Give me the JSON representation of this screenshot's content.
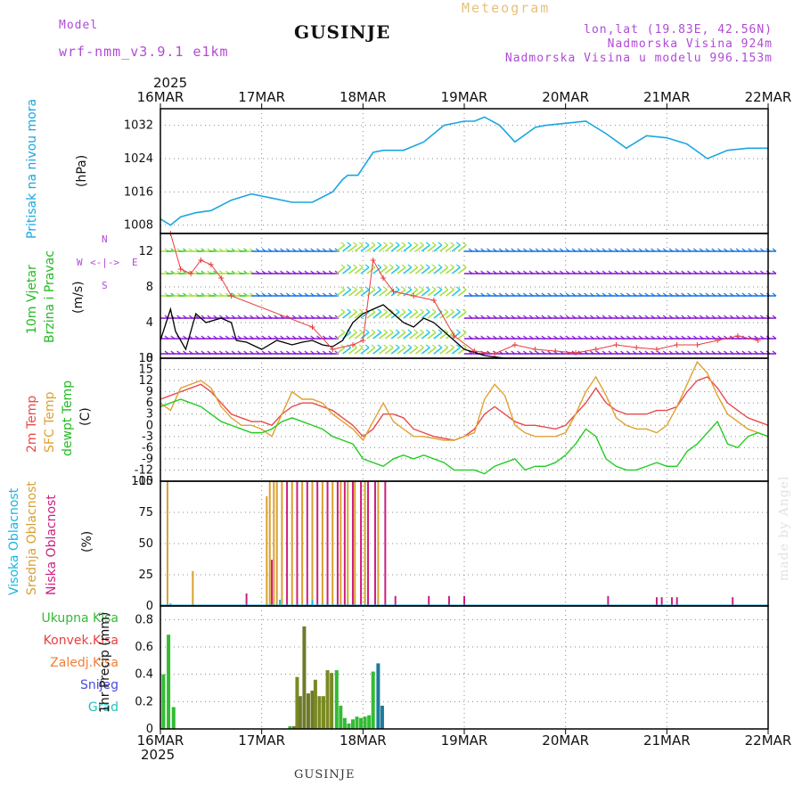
{
  "header": {
    "model_label": "Model",
    "model_name": "wrf-nmm_v3.9.1 e1km",
    "station": "GUSINJE",
    "meteogram": "Meteogram",
    "lonlat": "lon,lat (19.83E, 42.56N)",
    "elev": "Nadmorska Visina 924m",
    "elev_model": "Nadmorska Visina u modelu 996.153m",
    "year_top": "2025"
  },
  "footer": {
    "year": "2025",
    "station": "GUSINJE",
    "credit": "made by Angel"
  },
  "x_ticks": [
    "16MAR",
    "17MAR",
    "18MAR",
    "19MAR",
    "20MAR",
    "21MAR",
    "22MAR"
  ],
  "colors": {
    "pressure": "#1aa6e0",
    "wind_black": "#000000",
    "wind_gust": "#e83c3c",
    "temp2m": "#e84a4a",
    "sfc": "#e0a030",
    "dew": "#22cc22",
    "cloud_high": "#19b5e0",
    "cloud_mid": "#d9a030",
    "cloud_low": "#cc1f80",
    "rain_total": "#33bb33",
    "rain_conv": "#e84040",
    "rain_frz": "#ef7f3a",
    "snow": "#4a4ae0",
    "grad": "#22c0c0",
    "barb_violet": "#8a1fd8",
    "barb_blue": "#1f7ae8",
    "barb_lime": "#a8e040",
    "barb_cyan": "#22c9e0"
  },
  "panels": {
    "pressure": {
      "ylabel1": "Pritisak na nivou mora",
      "ylabel2": "(hPa)",
      "ticks": [
        "1008",
        "1016",
        "1024",
        "1032"
      ]
    },
    "wind": {
      "ylabel1": "10m Vjetar",
      "ylabel2": "Brzina i Pravac",
      "ylabel3": "(m/s)",
      "ticks": [
        "0",
        "4",
        "8",
        "12"
      ],
      "compass_n": "N",
      "compass_w": "W",
      "compass_e": "E",
      "compass_s": "S"
    },
    "temp": {
      "ylabel1": "2m Temp",
      "ylabel2": "SFC Temp",
      "ylabel3": "dewpt Temp",
      "ylabel4": "(C)",
      "ticks": [
        "-15",
        "-12",
        "-9",
        "-6",
        "-3",
        "0",
        "3",
        "6",
        "9",
        "12",
        "15",
        "18"
      ]
    },
    "cloud": {
      "ylabel1": "Visoka Oblacnost",
      "ylabel2": "Srednja Oblacnost",
      "ylabel3": "Niska Oblacnost",
      "ylabel4": "(%)",
      "ticks": [
        "0",
        "25",
        "50",
        "75",
        "100"
      ]
    },
    "precip": {
      "ylabel": "1hr Precip (mm)",
      "ticks": [
        "0",
        "0.2",
        "0.4",
        "0.6",
        "0.8"
      ],
      "legend": [
        "Ukupna Kisa",
        "Konvek.Kisa",
        "Zaledj.Kisa",
        "Snijeg",
        "Grad"
      ]
    }
  },
  "chart_data": [
    {
      "type": "line",
      "name": "pressure",
      "ylim": [
        1006,
        1036
      ],
      "x": [
        0,
        0.1,
        0.2,
        0.35,
        0.5,
        0.7,
        0.9,
        1.0,
        1.1,
        1.3,
        1.5,
        1.7,
        1.8,
        1.85,
        1.95,
        2.1,
        2.2,
        2.4,
        2.6,
        2.8,
        3.0,
        3.1,
        3.2,
        3.35,
        3.5,
        3.7,
        3.8,
        4.0,
        4.2,
        4.4,
        4.6,
        4.8,
        5.0,
        5.2,
        5.4,
        5.6,
        5.8,
        6.0
      ],
      "y": [
        1009.5,
        1008,
        1010,
        1011,
        1011.5,
        1014,
        1015.5,
        1015,
        1014.5,
        1013.5,
        1013.5,
        1016,
        1019,
        1020,
        1020,
        1025.5,
        1026,
        1026,
        1028,
        1032,
        1033,
        1033,
        1034,
        1032,
        1028,
        1031.5,
        1032,
        1032.5,
        1033,
        1030,
        1026.5,
        1029.5,
        1029,
        1027.5,
        1024,
        1026,
        1026.5,
        1026.5
      ]
    },
    {
      "type": "line",
      "name": "wind_speed",
      "ylim": [
        0,
        14
      ],
      "x": [
        0,
        0.1,
        0.15,
        0.25,
        0.35,
        0.45,
        0.6,
        0.7,
        0.75,
        0.85,
        1.0,
        1.15,
        1.3,
        1.4,
        1.5,
        1.6,
        1.7,
        1.8,
        1.9,
        2.0,
        2.1,
        2.2,
        2.3,
        2.4,
        2.5,
        2.6,
        2.7,
        2.8,
        2.9,
        3.0,
        3.2,
        3.4,
        3.6
      ],
      "y": [
        2,
        5.5,
        3,
        1,
        5,
        4,
        4.5,
        4,
        2,
        1.8,
        1,
        2,
        1.5,
        1.8,
        2,
        1.5,
        1.3,
        2,
        4,
        5,
        5.5,
        6,
        5,
        4,
        3.5,
        4.5,
        4,
        3,
        2,
        1,
        0.3,
        0,
        0
      ]
    },
    {
      "type": "scatter",
      "name": "wind_gust",
      "ylim": [
        0,
        14
      ],
      "x": [
        0.1,
        0.2,
        0.3,
        0.4,
        0.5,
        0.6,
        0.7,
        1.5,
        1.7,
        1.9,
        2.0,
        2.1,
        2.2,
        2.3,
        2.5,
        2.7,
        2.9,
        3.1,
        3.3,
        3.5,
        3.7,
        3.9,
        4.1,
        4.3,
        4.5,
        4.7,
        4.9,
        5.1,
        5.3,
        5.5,
        5.7,
        5.9
      ],
      "y": [
        14,
        10,
        9.5,
        11,
        10.5,
        9,
        7,
        3.5,
        1,
        1.5,
        2,
        11,
        9,
        7.5,
        7,
        6.5,
        2.5,
        0.8,
        0.5,
        1.5,
        1,
        0.8,
        0.6,
        1,
        1.5,
        1.2,
        1,
        1.5,
        1.5,
        2,
        2.5,
        2
      ]
    },
    {
      "type": "line",
      "name": "temps",
      "ylim": [
        -15,
        18
      ],
      "x": [
        0,
        0.1,
        0.2,
        0.3,
        0.4,
        0.5,
        0.6,
        0.7,
        0.8,
        0.9,
        1.0,
        1.1,
        1.2,
        1.3,
        1.4,
        1.5,
        1.6,
        1.7,
        1.8,
        1.9,
        2.0,
        2.1,
        2.2,
        2.3,
        2.4,
        2.5,
        2.6,
        2.7,
        2.8,
        2.9,
        3.0,
        3.1,
        3.2,
        3.3,
        3.4,
        3.5,
        3.6,
        3.7,
        3.8,
        3.9,
        4.0,
        4.1,
        4.2,
        4.3,
        4.4,
        4.5,
        4.6,
        4.7,
        4.8,
        4.9,
        5.0,
        5.1,
        5.2,
        5.3,
        5.4,
        5.5,
        5.6,
        5.7,
        5.8,
        5.9,
        6.0
      ],
      "series": [
        {
          "name": "2m Temp",
          "values": [
            7,
            8,
            9,
            10,
            11,
            9,
            6,
            3,
            2,
            1,
            1,
            0,
            3,
            5,
            6,
            6,
            5,
            4,
            2,
            0,
            -3,
            -1,
            3,
            3,
            2,
            -1,
            -2,
            -3,
            -3.5,
            -4,
            -3,
            -1,
            3,
            5,
            3,
            1,
            0,
            0,
            -0.5,
            -1,
            0,
            3,
            6,
            10,
            6,
            4,
            3,
            3,
            3,
            4,
            4,
            5,
            9,
            12,
            13,
            10,
            6,
            4,
            2,
            1,
            0
          ]
        },
        {
          "name": "SFC Temp",
          "values": [
            6,
            4,
            10,
            11,
            12,
            10,
            5,
            2,
            0,
            0,
            -1,
            -3,
            3,
            9,
            7,
            7,
            6,
            3,
            1,
            -1,
            -4,
            1,
            6,
            1,
            -1,
            -3,
            -3,
            -3.5,
            -4,
            -4,
            -3,
            -2,
            7,
            11,
            8,
            0,
            -2,
            -3,
            -3,
            -3,
            -2,
            3,
            9,
            13,
            8,
            2,
            0,
            -1,
            -1,
            -2,
            0,
            5,
            11,
            17,
            14,
            8,
            3,
            1,
            -1,
            -2,
            -3
          ]
        },
        {
          "name": "dewpt Temp",
          "values": [
            5,
            6,
            7,
            6,
            5,
            3,
            1,
            0,
            -1,
            -2,
            -2,
            -1,
            1,
            2,
            1,
            0,
            -1,
            -3,
            -4,
            -5,
            -9,
            -10,
            -11,
            -9,
            -8,
            -9,
            -8,
            -9,
            -10,
            -12,
            -12,
            -12,
            -13,
            -11,
            -10,
            -9,
            -12,
            -11,
            -11,
            -10,
            -8,
            -5,
            -1,
            -3,
            -9,
            -11,
            -12,
            -12,
            -11,
            -10,
            -11,
            -11,
            -7,
            -5,
            -2,
            1,
            -5,
            -6,
            -3,
            -2,
            -3
          ]
        }
      ]
    },
    {
      "type": "bar",
      "name": "cloud",
      "ylim": [
        0,
        100
      ],
      "mid": [
        [
          0.07,
          100
        ],
        [
          0.32,
          28
        ],
        [
          1.05,
          88
        ],
        [
          1.08,
          100
        ],
        [
          1.12,
          100
        ],
        [
          1.15,
          100
        ],
        [
          1.2,
          100
        ],
        [
          1.3,
          100
        ],
        [
          1.4,
          100
        ],
        [
          1.5,
          100
        ],
        [
          1.6,
          100
        ],
        [
          1.7,
          100
        ],
        [
          1.78,
          100
        ],
        [
          1.85,
          100
        ],
        [
          1.92,
          100
        ],
        [
          2.02,
          100
        ],
        [
          2.15,
          100
        ]
      ],
      "low": [
        [
          0.85,
          10
        ],
        [
          1.1,
          37
        ],
        [
          1.25,
          100
        ],
        [
          1.35,
          100
        ],
        [
          1.45,
          100
        ],
        [
          1.55,
          100
        ],
        [
          1.65,
          100
        ],
        [
          1.75,
          100
        ],
        [
          1.82,
          100
        ],
        [
          1.9,
          100
        ],
        [
          1.98,
          100
        ],
        [
          2.05,
          100
        ],
        [
          2.12,
          100
        ],
        [
          2.22,
          100
        ],
        [
          2.32,
          8
        ],
        [
          2.65,
          8
        ],
        [
          2.85,
          8
        ],
        [
          3.0,
          8
        ],
        [
          4.42,
          8
        ],
        [
          4.9,
          7
        ],
        [
          4.95,
          7
        ],
        [
          5.05,
          7
        ],
        [
          5.1,
          7
        ],
        [
          5.65,
          7
        ]
      ],
      "high": [
        [
          0.1,
          2
        ],
        [
          1.18,
          5
        ],
        [
          1.5,
          5
        ]
      ]
    },
    {
      "type": "bar",
      "name": "precip_total",
      "ylim": [
        0,
        0.9
      ],
      "bars": [
        [
          0.03,
          0.4
        ],
        [
          0.08,
          0.69
        ],
        [
          0.13,
          0.16
        ],
        [
          1.28,
          0.02
        ],
        [
          1.32,
          0.02
        ],
        [
          1.35,
          0.38
        ],
        [
          1.38,
          0.24
        ],
        [
          1.42,
          0.75
        ],
        [
          1.46,
          0.26
        ],
        [
          1.5,
          0.28
        ],
        [
          1.53,
          0.36
        ],
        [
          1.57,
          0.24
        ],
        [
          1.61,
          0.24
        ],
        [
          1.65,
          0.43
        ],
        [
          1.69,
          0.41
        ],
        [
          1.74,
          0.43
        ],
        [
          1.78,
          0.17
        ],
        [
          1.82,
          0.08
        ],
        [
          1.86,
          0.04
        ],
        [
          1.9,
          0.07
        ],
        [
          1.94,
          0.09
        ],
        [
          1.98,
          0.08
        ],
        [
          2.02,
          0.09
        ],
        [
          2.06,
          0.1
        ],
        [
          2.1,
          0.42
        ],
        [
          2.15,
          0.48
        ],
        [
          2.19,
          0.17
        ]
      ]
    }
  ]
}
